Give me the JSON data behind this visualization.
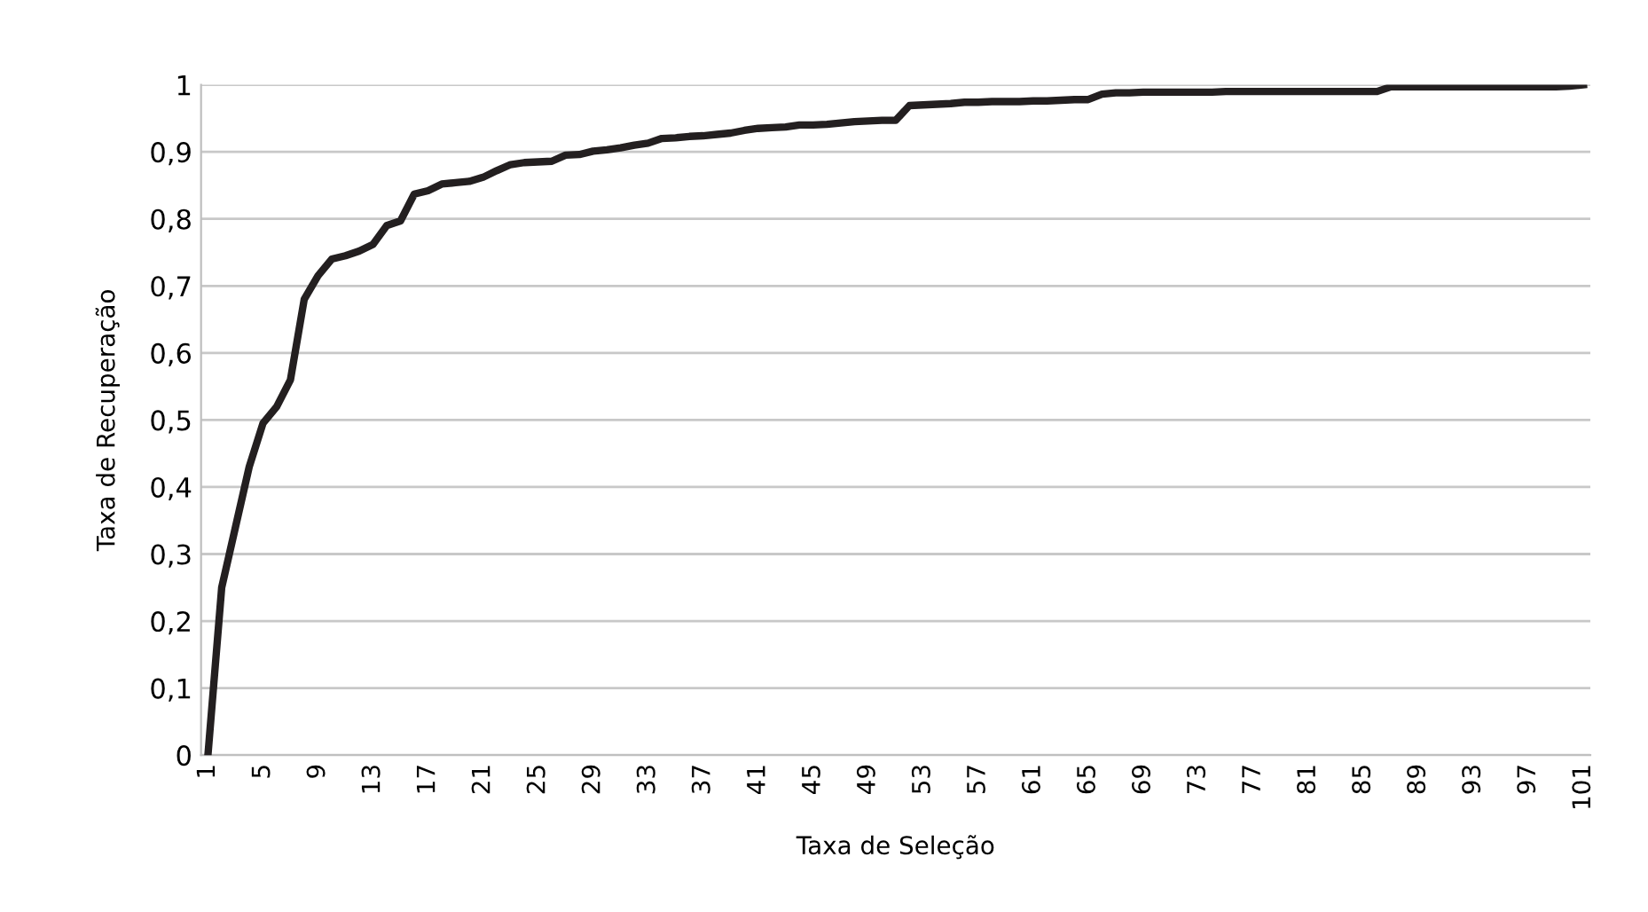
{
  "chart_data": {
    "type": "line",
    "xlabel": "Taxa de Seleção",
    "ylabel": "Taxa de Recuperação",
    "categories": [
      "1",
      null,
      null,
      null,
      "5",
      null,
      null,
      null,
      "9",
      null,
      null,
      null,
      "13",
      null,
      null,
      null,
      "17",
      null,
      null,
      null,
      "21",
      null,
      null,
      null,
      "25",
      null,
      null,
      null,
      "29",
      null,
      null,
      null,
      "33",
      null,
      null,
      null,
      "37",
      null,
      null,
      null,
      "41",
      null,
      null,
      null,
      "45",
      null,
      null,
      null,
      "49",
      null,
      null,
      null,
      "53",
      null,
      null,
      null,
      "57",
      null,
      null,
      null,
      "61",
      null,
      null,
      null,
      "65",
      null,
      null,
      null,
      "69",
      null,
      null,
      null,
      "73",
      null,
      null,
      null,
      "77",
      null,
      null,
      null,
      "81",
      null,
      null,
      null,
      "85",
      null,
      null,
      null,
      "89",
      null,
      null,
      null,
      "93",
      null,
      null,
      null,
      "97",
      null,
      null,
      null,
      "101"
    ],
    "series": [
      {
        "color": "#231f20",
        "values": [
          0,
          0.25,
          0.34,
          0.43,
          0.495,
          0.52,
          0.56,
          0.68,
          0.715,
          0.74,
          0.745,
          0.752,
          0.762,
          0.79,
          0.797,
          0.837,
          0.842,
          0.852,
          0.854,
          0.856,
          0.862,
          0.872,
          0.881,
          0.884,
          0.885,
          0.886,
          0.895,
          0.896,
          0.901,
          0.903,
          0.906,
          0.91,
          0.913,
          0.92,
          0.921,
          0.923,
          0.924,
          0.926,
          0.928,
          0.932,
          0.935,
          0.936,
          0.937,
          0.94,
          0.94,
          0.941,
          0.943,
          0.945,
          0.946,
          0.947,
          0.947,
          0.969,
          0.97,
          0.971,
          0.972,
          0.974,
          0.974,
          0.975,
          0.975,
          0.975,
          0.976,
          0.976,
          0.977,
          0.978,
          0.978,
          0.986,
          0.988,
          0.988,
          0.989,
          0.989,
          0.989,
          0.989,
          0.989,
          0.989,
          0.99,
          0.99,
          0.99,
          0.99,
          0.99,
          0.99,
          0.99,
          0.99,
          0.99,
          0.99,
          0.99,
          0.99,
          0.997,
          0.997,
          0.997,
          0.997,
          0.997,
          0.997,
          0.997,
          0.997,
          0.997,
          0.997,
          0.997,
          0.997,
          0.997,
          0.998,
          1
        ]
      }
    ],
    "ylim": [
      0,
      1
    ],
    "yticks": [
      0,
      {
        "value": 0.1,
        "label": "0,1"
      },
      {
        "value": 0.2,
        "label": "0,2"
      },
      {
        "value": 0.3,
        "label": "0,3"
      },
      {
        "value": 0.4,
        "label": "0,4"
      },
      {
        "value": 0.5,
        "label": "0,5"
      },
      {
        "value": 0.6,
        "label": "0,6"
      },
      {
        "value": 0.7,
        "label": "0,7"
      },
      {
        "value": 0.8,
        "label": "0,8"
      },
      {
        "value": 0.9,
        "label": "0,9"
      },
      1
    ],
    "grid": "y",
    "marker": "none",
    "line_style": "solid"
  }
}
